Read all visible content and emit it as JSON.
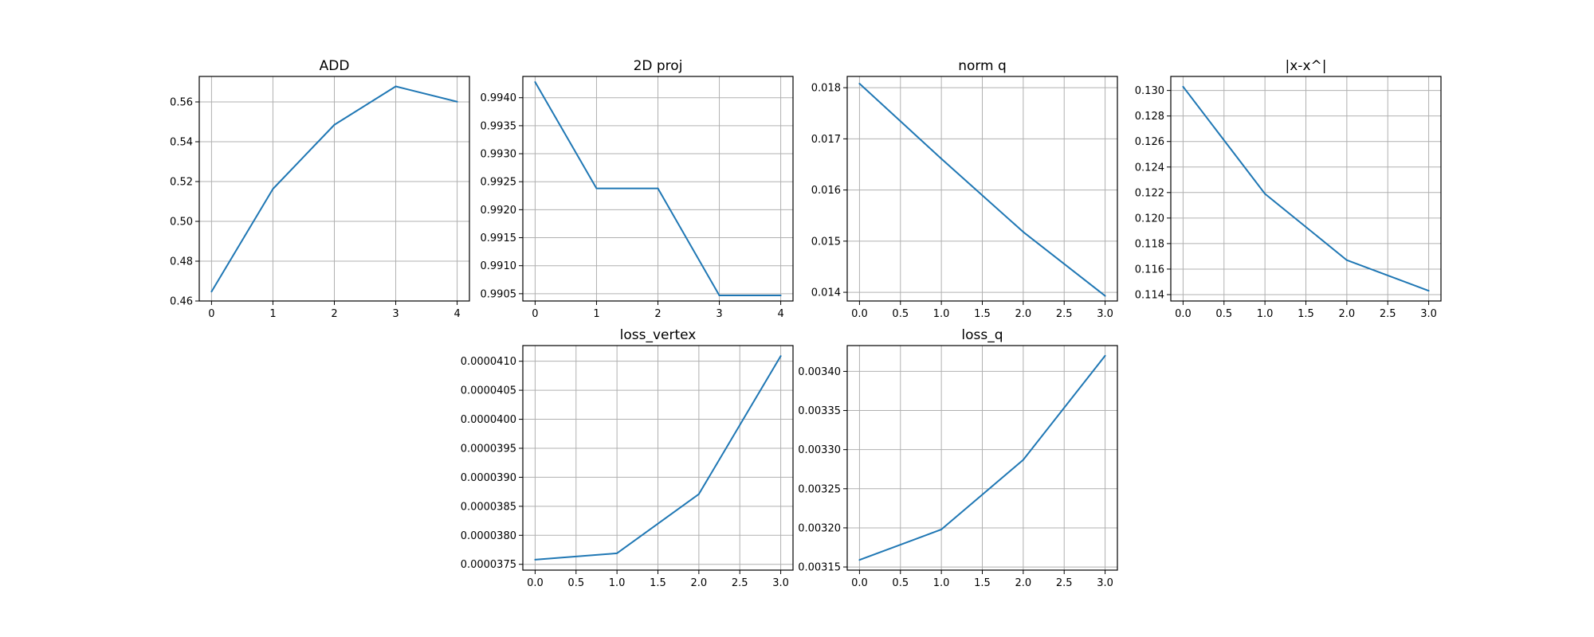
{
  "style": {
    "line_color": "#1f77b4",
    "grid_color": "#b0b0b0",
    "grid": true
  },
  "chart_data": [
    {
      "type": "line",
      "title": "ADD",
      "x": [
        0,
        1,
        2,
        3,
        4
      ],
      "values": [
        0.4647,
        0.5163,
        0.5485,
        0.5678,
        0.5601
      ],
      "xlim": [
        -0.2,
        4.2
      ],
      "ylim": [
        0.46,
        0.5728
      ],
      "xticks": [
        0,
        1,
        2,
        3,
        4
      ],
      "xtick_labels": [
        "0",
        "1",
        "2",
        "3",
        "4"
      ],
      "yticks": [
        0.46,
        0.48,
        0.5,
        0.52,
        0.54,
        0.56
      ],
      "ytick_labels": [
        "0.46",
        "0.48",
        "0.50",
        "0.52",
        "0.54",
        "0.56"
      ]
    },
    {
      "type": "line",
      "title": "2D proj",
      "x": [
        0,
        1,
        2,
        3,
        4
      ],
      "values": [
        0.99428,
        0.99238,
        0.99238,
        0.99047,
        0.99047
      ],
      "xlim": [
        -0.2,
        4.2
      ],
      "ylim": [
        0.99037,
        0.99438
      ],
      "xticks": [
        0,
        1,
        2,
        3,
        4
      ],
      "xtick_labels": [
        "0",
        "1",
        "2",
        "3",
        "4"
      ],
      "yticks": [
        0.9905,
        0.991,
        0.9915,
        0.992,
        0.9925,
        0.993,
        0.9935,
        0.994
      ],
      "ytick_labels": [
        "0.9905",
        "0.9910",
        "0.9915",
        "0.9920",
        "0.9925",
        "0.9930",
        "0.9935",
        "0.9940"
      ]
    },
    {
      "type": "line",
      "title": "norm q",
      "x": [
        0,
        1,
        2,
        3
      ],
      "values": [
        0.01808,
        0.01661,
        0.01518,
        0.01393
      ],
      "xlim": [
        -0.15,
        3.15
      ],
      "ylim": [
        0.01383,
        0.01822
      ],
      "xticks": [
        0,
        0.5,
        1,
        1.5,
        2,
        2.5,
        3
      ],
      "xtick_labels": [
        "0.0",
        "0.5",
        "1.0",
        "1.5",
        "2.0",
        "2.5",
        "3.0"
      ],
      "yticks": [
        0.014,
        0.015,
        0.016,
        0.017,
        0.018
      ],
      "ytick_labels": [
        "0.014",
        "0.015",
        "0.016",
        "0.017",
        "0.018"
      ]
    },
    {
      "type": "line",
      "title": "|x-x^|",
      "x": [
        0,
        1,
        2,
        3
      ],
      "values": [
        0.1303,
        0.1219,
        0.1167,
        0.1143
      ],
      "xlim": [
        -0.15,
        3.15
      ],
      "ylim": [
        0.1135,
        0.1311
      ],
      "xticks": [
        0,
        0.5,
        1,
        1.5,
        2,
        2.5,
        3
      ],
      "xtick_labels": [
        "0.0",
        "0.5",
        "1.0",
        "1.5",
        "2.0",
        "2.5",
        "3.0"
      ],
      "yticks": [
        0.114,
        0.116,
        0.118,
        0.12,
        0.122,
        0.124,
        0.126,
        0.128,
        0.13
      ],
      "ytick_labels": [
        "0.114",
        "0.116",
        "0.118",
        "0.120",
        "0.122",
        "0.124",
        "0.126",
        "0.128",
        "0.130"
      ]
    },
    {
      "type": "line",
      "title": "loss_vertex",
      "x": [
        0,
        1,
        2,
        3
      ],
      "values": [
        3.758e-05,
        3.769e-05,
        3.871e-05,
        4.109e-05
      ],
      "xlim": [
        -0.15,
        3.15
      ],
      "ylim": [
        3.74e-05,
        4.127e-05
      ],
      "xticks": [
        0,
        0.5,
        1,
        1.5,
        2,
        2.5,
        3
      ],
      "xtick_labels": [
        "0.0",
        "0.5",
        "1.0",
        "1.5",
        "2.0",
        "2.5",
        "3.0"
      ],
      "yticks": [
        3.75e-05,
        3.8e-05,
        3.85e-05,
        3.9e-05,
        3.95e-05,
        4e-05,
        4.05e-05,
        4.1e-05
      ],
      "ytick_labels": [
        "0.0000375",
        "0.0000380",
        "0.0000385",
        "0.0000390",
        "0.0000395",
        "0.0000400",
        "0.0000405",
        "0.0000410"
      ]
    },
    {
      "type": "line",
      "title": "loss_q",
      "x": [
        0,
        1,
        2,
        3
      ],
      "values": [
        0.003159,
        0.003198,
        0.003287,
        0.00342
      ],
      "xlim": [
        -0.15,
        3.15
      ],
      "ylim": [
        0.003146,
        0.003433
      ],
      "xticks": [
        0,
        0.5,
        1,
        1.5,
        2,
        2.5,
        3
      ],
      "xtick_labels": [
        "0.0",
        "0.5",
        "1.0",
        "1.5",
        "2.0",
        "2.5",
        "3.0"
      ],
      "yticks": [
        0.00315,
        0.0032,
        0.00325,
        0.0033,
        0.00335,
        0.0034
      ],
      "ytick_labels": [
        "0.00315",
        "0.00320",
        "0.00325",
        "0.00330",
        "0.00335",
        "0.00340"
      ]
    }
  ]
}
